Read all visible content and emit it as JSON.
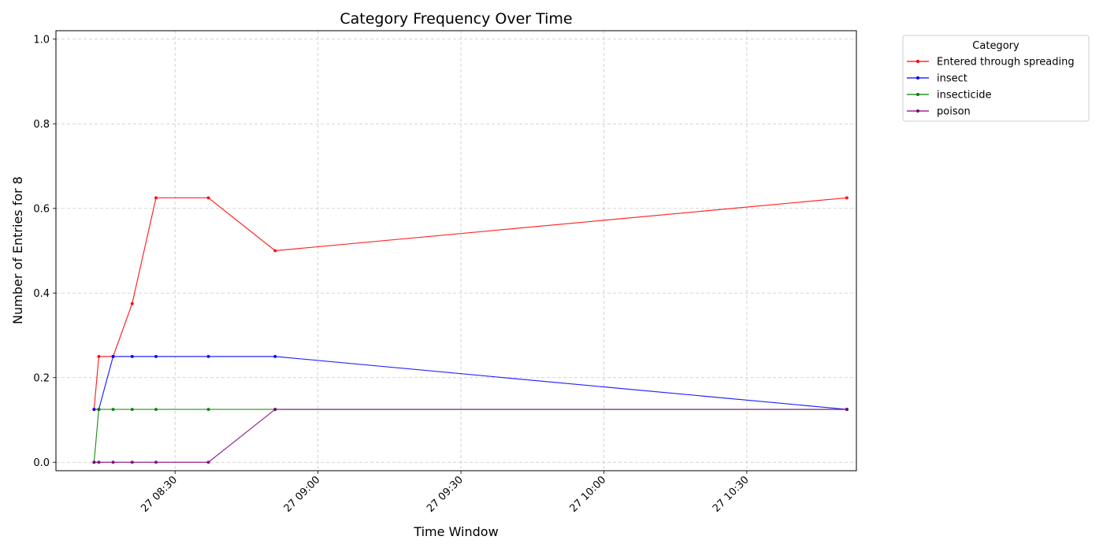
{
  "chart_data": {
    "type": "line",
    "title": "Category Frequency Over Time",
    "xlabel": "Time Window",
    "ylabel": "Number of Entries for 8",
    "x_unit": "clock time (HH:MM) on day 27",
    "xlim": [
      "08:05",
      "10:53"
    ],
    "ylim": [
      -0.02,
      1.02
    ],
    "y_ticks": [
      0.0,
      0.2,
      0.4,
      0.6,
      0.8,
      1.0
    ],
    "y_tick_labels": [
      "0.0",
      "0.2",
      "0.4",
      "0.6",
      "0.8",
      "1.0"
    ],
    "x_ticks": [
      "08:30",
      "09:00",
      "09:30",
      "10:00",
      "10:30"
    ],
    "x_tick_labels": [
      "27 08:30",
      "27 09:00",
      "27 09:30",
      "27 10:00",
      "27 10:30"
    ],
    "grid": true,
    "legend": {
      "title": "Category",
      "placement": "outside-top-right"
    },
    "series": [
      {
        "name": "Entered through spreading",
        "color": "#ff0000",
        "x": [
          "08:13",
          "08:14",
          "08:17",
          "08:21",
          "08:26",
          "08:37",
          "08:51",
          "10:51"
        ],
        "y": [
          0.125,
          0.25,
          0.25,
          0.375,
          0.625,
          0.625,
          0.5,
          0.625
        ]
      },
      {
        "name": "insect",
        "color": "#0000ff",
        "x": [
          "08:13",
          "08:14",
          "08:17",
          "08:21",
          "08:26",
          "08:37",
          "08:51",
          "10:51"
        ],
        "y": [
          0.125,
          0.125,
          0.25,
          0.25,
          0.25,
          0.25,
          0.25,
          0.125
        ]
      },
      {
        "name": "insecticide",
        "color": "#008000",
        "x": [
          "08:13",
          "08:14",
          "08:17",
          "08:21",
          "08:26",
          "08:37",
          "08:51",
          "10:51"
        ],
        "y": [
          0.0,
          0.125,
          0.125,
          0.125,
          0.125,
          0.125,
          0.125,
          0.125
        ]
      },
      {
        "name": "poison",
        "color": "#800080",
        "x": [
          "08:13",
          "08:14",
          "08:17",
          "08:21",
          "08:26",
          "08:37",
          "08:51",
          "10:51"
        ],
        "y": [
          0.0,
          0.0,
          0.0,
          0.0,
          0.0,
          0.0,
          0.125,
          0.125
        ]
      }
    ]
  }
}
